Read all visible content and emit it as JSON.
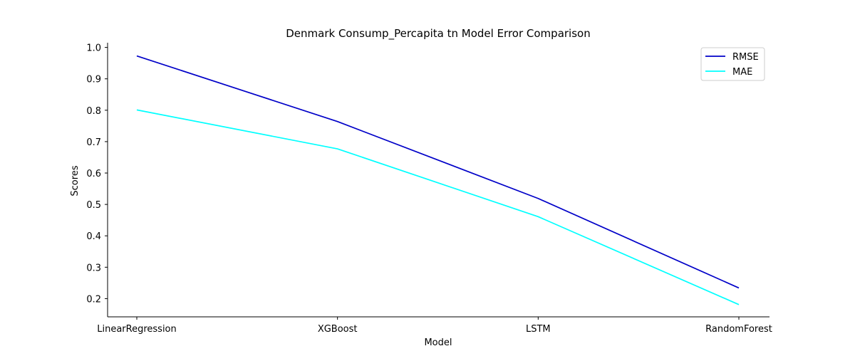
{
  "chart_data": {
    "type": "line",
    "title": "Denmark Consump_Percapita tn Model Error Comparison",
    "xlabel": "Model",
    "ylabel": "Scores",
    "categories": [
      "LinearRegression",
      "XGBoost",
      "LSTM",
      "RandomForest"
    ],
    "yticks": [
      "0.2",
      "0.3",
      "0.4",
      "0.5",
      "0.6",
      "0.7",
      "0.8",
      "0.9",
      "1.0"
    ],
    "ylim": [
      0.142,
      1.015
    ],
    "grid": false,
    "legend_position": "top-right",
    "series": [
      {
        "name": "RMSE",
        "color": "#0000c8",
        "values": [
          0.973,
          0.764,
          0.519,
          0.234
        ]
      },
      {
        "name": "MAE",
        "color": "#00ffff",
        "values": [
          0.801,
          0.677,
          0.461,
          0.181
        ]
      }
    ]
  }
}
